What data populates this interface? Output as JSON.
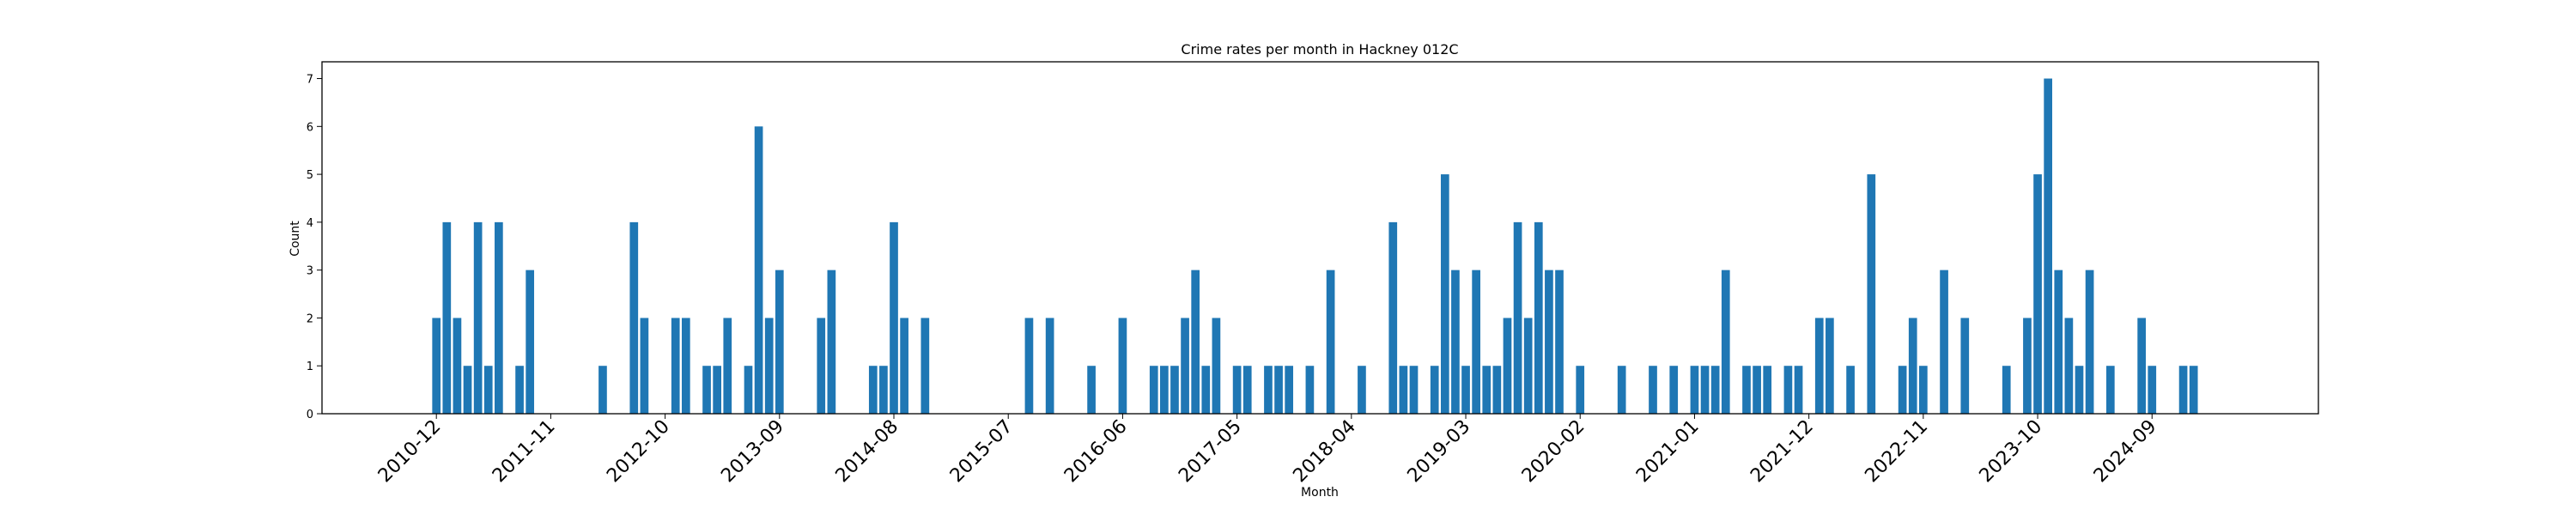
{
  "chart_data": {
    "type": "bar",
    "title": "Crime rates per month in Hackney 012C",
    "xlabel": "Month",
    "ylabel": "Count",
    "ylim": [
      0,
      7.35
    ],
    "xlim": [
      "2010-01",
      "2026-01"
    ],
    "y_ticks": [
      0,
      1,
      2,
      3,
      4,
      5,
      6,
      7
    ],
    "x_ticks": [
      "2010-12",
      "2011-11",
      "2012-10",
      "2013-09",
      "2014-08",
      "2015-07",
      "2016-06",
      "2017-05",
      "2018-04",
      "2019-03",
      "2020-02",
      "2021-01",
      "2021-12",
      "2022-11",
      "2023-10",
      "2024-09"
    ],
    "grid": false,
    "legend": "none",
    "bar_color": "#1f77b4",
    "bars": [
      {
        "x": "2010-12",
        "y": 2
      },
      {
        "x": "2011-01",
        "y": 4
      },
      {
        "x": "2011-02",
        "y": 2
      },
      {
        "x": "2011-03",
        "y": 1
      },
      {
        "x": "2011-04",
        "y": 4
      },
      {
        "x": "2011-05",
        "y": 1
      },
      {
        "x": "2011-06",
        "y": 4
      },
      {
        "x": "2011-08",
        "y": 1
      },
      {
        "x": "2011-09",
        "y": 3
      },
      {
        "x": "2012-04",
        "y": 1
      },
      {
        "x": "2012-07",
        "y": 4
      },
      {
        "x": "2012-08",
        "y": 2
      },
      {
        "x": "2012-11",
        "y": 2
      },
      {
        "x": "2012-12",
        "y": 2
      },
      {
        "x": "2013-02",
        "y": 1
      },
      {
        "x": "2013-03",
        "y": 1
      },
      {
        "x": "2013-04",
        "y": 2
      },
      {
        "x": "2013-06",
        "y": 1
      },
      {
        "x": "2013-07",
        "y": 6
      },
      {
        "x": "2013-08",
        "y": 2
      },
      {
        "x": "2013-09",
        "y": 3
      },
      {
        "x": "2014-01",
        "y": 2
      },
      {
        "x": "2014-02",
        "y": 3
      },
      {
        "x": "2014-06",
        "y": 1
      },
      {
        "x": "2014-07",
        "y": 1
      },
      {
        "x": "2014-08",
        "y": 4
      },
      {
        "x": "2014-09",
        "y": 2
      },
      {
        "x": "2014-11",
        "y": 2
      },
      {
        "x": "2015-09",
        "y": 2
      },
      {
        "x": "2015-11",
        "y": 2
      },
      {
        "x": "2016-03",
        "y": 1
      },
      {
        "x": "2016-06",
        "y": 2
      },
      {
        "x": "2016-09",
        "y": 1
      },
      {
        "x": "2016-10",
        "y": 1
      },
      {
        "x": "2016-11",
        "y": 1
      },
      {
        "x": "2016-12",
        "y": 2
      },
      {
        "x": "2017-01",
        "y": 3
      },
      {
        "x": "2017-02",
        "y": 1
      },
      {
        "x": "2017-03",
        "y": 2
      },
      {
        "x": "2017-05",
        "y": 1
      },
      {
        "x": "2017-06",
        "y": 1
      },
      {
        "x": "2017-08",
        "y": 1
      },
      {
        "x": "2017-09",
        "y": 1
      },
      {
        "x": "2017-10",
        "y": 1
      },
      {
        "x": "2017-12",
        "y": 1
      },
      {
        "x": "2018-02",
        "y": 3
      },
      {
        "x": "2018-05",
        "y": 1
      },
      {
        "x": "2018-08",
        "y": 4
      },
      {
        "x": "2018-09",
        "y": 1
      },
      {
        "x": "2018-10",
        "y": 1
      },
      {
        "x": "2018-12",
        "y": 1
      },
      {
        "x": "2019-01",
        "y": 5
      },
      {
        "x": "2019-02",
        "y": 3
      },
      {
        "x": "2019-03",
        "y": 1
      },
      {
        "x": "2019-04",
        "y": 3
      },
      {
        "x": "2019-05",
        "y": 1
      },
      {
        "x": "2019-06",
        "y": 1
      },
      {
        "x": "2019-07",
        "y": 2
      },
      {
        "x": "2019-08",
        "y": 4
      },
      {
        "x": "2019-09",
        "y": 2
      },
      {
        "x": "2019-10",
        "y": 4
      },
      {
        "x": "2019-11",
        "y": 3
      },
      {
        "x": "2019-12",
        "y": 3
      },
      {
        "x": "2020-02",
        "y": 1
      },
      {
        "x": "2020-06",
        "y": 1
      },
      {
        "x": "2020-09",
        "y": 1
      },
      {
        "x": "2020-11",
        "y": 1
      },
      {
        "x": "2021-01",
        "y": 1
      },
      {
        "x": "2021-02",
        "y": 1
      },
      {
        "x": "2021-03",
        "y": 1
      },
      {
        "x": "2021-04",
        "y": 3
      },
      {
        "x": "2021-06",
        "y": 1
      },
      {
        "x": "2021-07",
        "y": 1
      },
      {
        "x": "2021-08",
        "y": 1
      },
      {
        "x": "2021-10",
        "y": 1
      },
      {
        "x": "2021-11",
        "y": 1
      },
      {
        "x": "2022-01",
        "y": 2
      },
      {
        "x": "2022-02",
        "y": 2
      },
      {
        "x": "2022-04",
        "y": 1
      },
      {
        "x": "2022-06",
        "y": 5
      },
      {
        "x": "2022-09",
        "y": 1
      },
      {
        "x": "2022-10",
        "y": 2
      },
      {
        "x": "2022-11",
        "y": 1
      },
      {
        "x": "2023-01",
        "y": 3
      },
      {
        "x": "2023-03",
        "y": 2
      },
      {
        "x": "2023-07",
        "y": 1
      },
      {
        "x": "2023-09",
        "y": 2
      },
      {
        "x": "2023-10",
        "y": 5
      },
      {
        "x": "2023-11",
        "y": 7
      },
      {
        "x": "2023-12",
        "y": 3
      },
      {
        "x": "2024-01",
        "y": 2
      },
      {
        "x": "2024-02",
        "y": 1
      },
      {
        "x": "2024-03",
        "y": 3
      },
      {
        "x": "2024-05",
        "y": 1
      },
      {
        "x": "2024-08",
        "y": 2
      },
      {
        "x": "2024-09",
        "y": 1
      },
      {
        "x": "2024-12",
        "y": 1
      },
      {
        "x": "2025-01",
        "y": 1
      }
    ]
  }
}
